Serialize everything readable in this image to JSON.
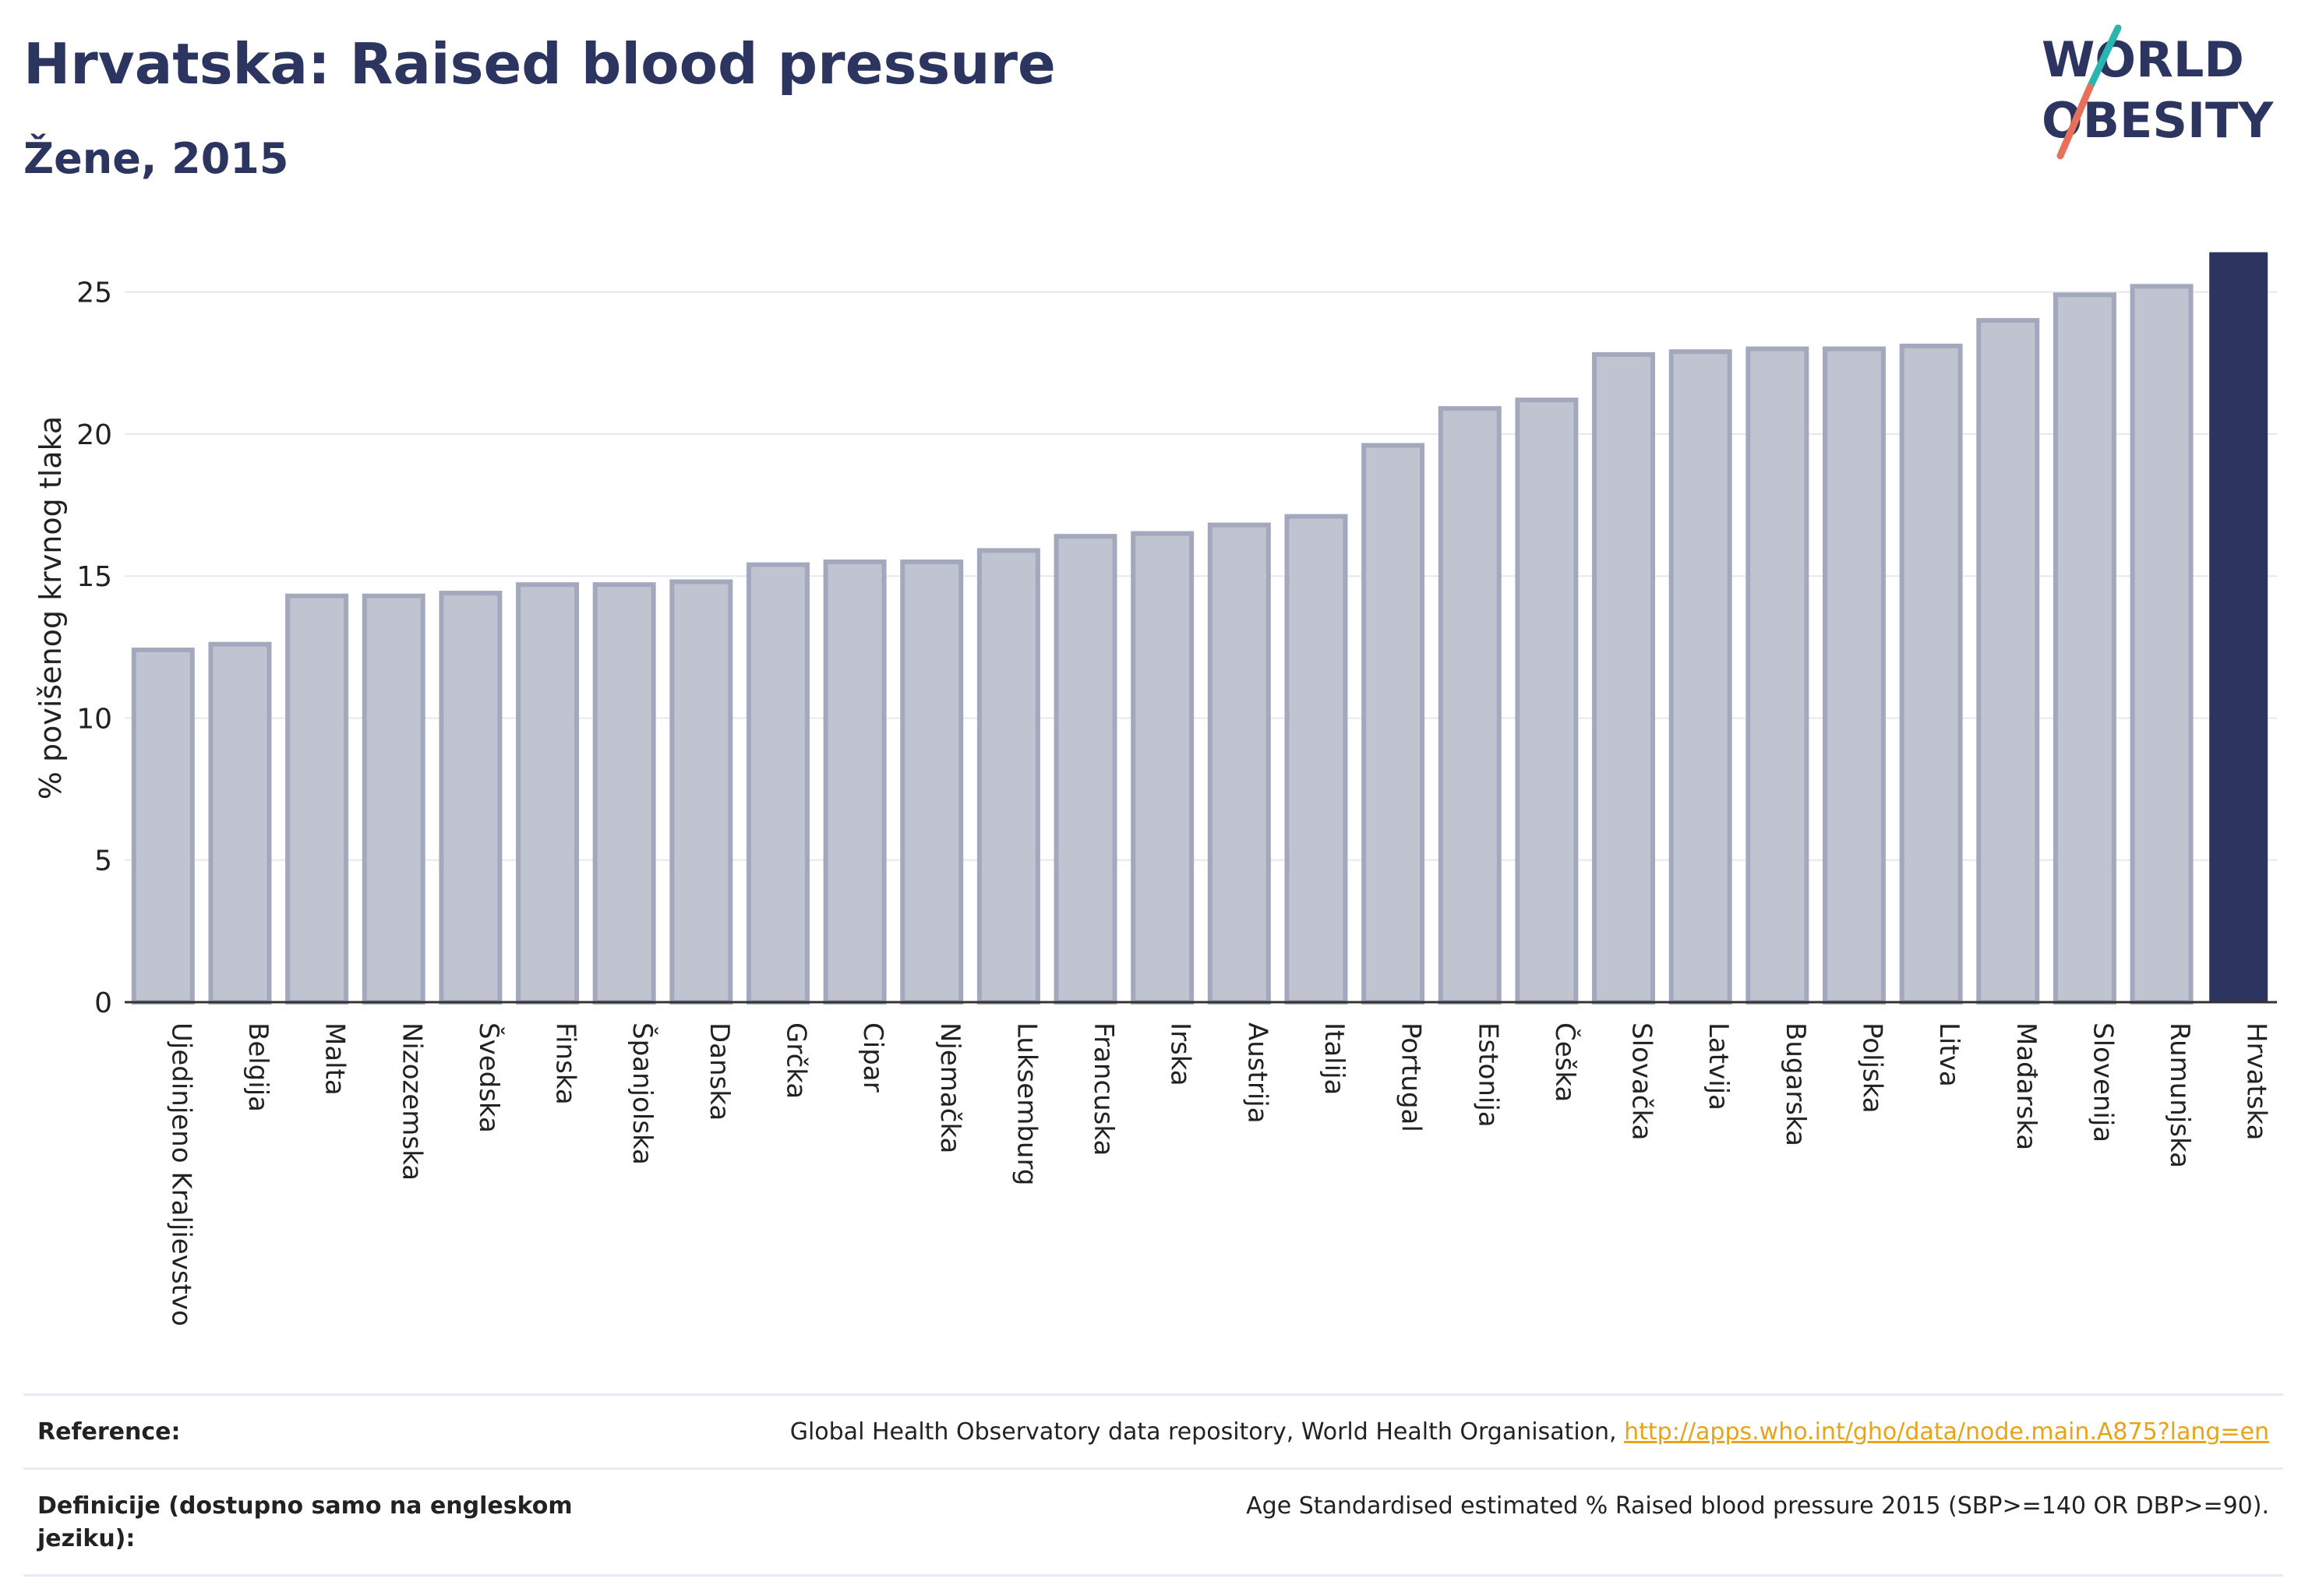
{
  "title": "Hrvatska: Raised blood pressure",
  "subtitle": "Žene, 2015",
  "logo": {
    "line1": "WORLD",
    "line2": "OBESITY"
  },
  "colors": {
    "bar": "#c0c3d0",
    "bar_stroke": "#a3a8bd",
    "highlight": "#2b3560",
    "grid": "#e6e8ee",
    "axis": "#333333"
  },
  "chart_data": {
    "type": "bar",
    "ylabel": "% povišenog krvnog tlaka",
    "xlabel": "",
    "ylim": [
      0,
      26.5
    ],
    "yticks": [
      0,
      5,
      10,
      15,
      20,
      25
    ],
    "highlight": "Hrvatska",
    "categories": [
      "Ujedinjeno Kraljievstvo",
      "Belgija",
      "Malta",
      "Nizozemska",
      "Švedska",
      "Finska",
      "Španjolska",
      "Danska",
      "Grčka",
      "Cipar",
      "Njemačka",
      "Luksemburg",
      "Francuska",
      "Irska",
      "Austrija",
      "Italija",
      "Portugal",
      "Estonija",
      "Češka",
      "Slovačka",
      "Latvija",
      "Bugarska",
      "Poljska",
      "Litva",
      "Mađarska",
      "Slovenija",
      "Rumunjska",
      "Hrvatska"
    ],
    "values": [
      12.4,
      12.6,
      14.3,
      14.3,
      14.4,
      14.7,
      14.7,
      14.8,
      15.4,
      15.5,
      15.5,
      15.9,
      16.4,
      16.5,
      16.8,
      17.1,
      19.6,
      20.9,
      21.2,
      22.8,
      22.9,
      23.0,
      23.0,
      23.1,
      24.0,
      24.9,
      25.2,
      26.4
    ]
  },
  "reference": {
    "label": "Reference:",
    "text": "Global Health Observatory data repository, World Health Organisation,",
    "link": "http://apps.who.int/gho/data/node.main.A875?lang=en"
  },
  "definition": {
    "label": "Definicije (dostupno samo na engleskom jeziku):",
    "text": "Age Standardised estimated % Raised blood pressure 2015 (SBP>=140 OR DBP>=90)."
  }
}
